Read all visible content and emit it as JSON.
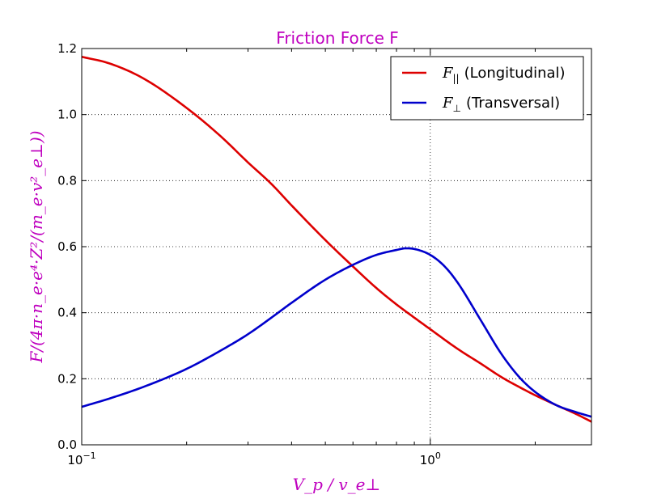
{
  "chart_data": {
    "type": "line",
    "title": "Friction Force F",
    "xlabel": "V_p / v_e⊥",
    "ylabel": "F/(4π·n_e·e⁴·Z²/(m_e·v²_e⊥))",
    "x_scale": "log",
    "xlim": [
      0.1,
      2.9
    ],
    "ylim": [
      0,
      1.2
    ],
    "x_ticks": [
      0.1,
      1.0
    ],
    "x_tick_labels": [
      {
        "base": "10",
        "exp": "−1"
      },
      {
        "base": "10",
        "exp": "0"
      }
    ],
    "y_ticks": [
      0.0,
      0.2,
      0.4,
      0.6,
      0.8,
      1.0,
      1.2
    ],
    "y_tick_labels": [
      "0.0",
      "0.2",
      "0.4",
      "0.6",
      "0.8",
      "1.0",
      "1.2"
    ],
    "grid": true,
    "legend_position": "top-right",
    "title_color": "#bf00bf",
    "label_color": "#bf00bf",
    "series": [
      {
        "name": "F|| (Longitudinal)",
        "legend_symbol": "F",
        "legend_subscript": "||",
        "legend_text": "(Longitudinal)",
        "color": "#dd0000",
        "x": [
          0.1,
          0.12,
          0.15,
          0.2,
          0.25,
          0.3,
          0.35,
          0.4,
          0.5,
          0.6,
          0.7,
          0.8,
          0.9,
          1.0,
          1.2,
          1.4,
          1.6,
          1.8,
          2.0,
          2.3,
          2.6,
          2.9
        ],
        "y": [
          1.175,
          1.155,
          1.11,
          1.02,
          0.935,
          0.855,
          0.79,
          0.725,
          0.62,
          0.54,
          0.475,
          0.425,
          0.385,
          0.35,
          0.29,
          0.245,
          0.205,
          0.175,
          0.15,
          0.12,
          0.095,
          0.07
        ]
      },
      {
        "name": "F⊥ (Transversal)",
        "legend_symbol": "F",
        "legend_subscript": "⊥",
        "legend_text": "(Transversal)",
        "color": "#0000cc",
        "x": [
          0.1,
          0.12,
          0.15,
          0.2,
          0.25,
          0.3,
          0.35,
          0.4,
          0.5,
          0.6,
          0.7,
          0.8,
          0.85,
          0.9,
          1.0,
          1.1,
          1.2,
          1.4,
          1.6,
          1.8,
          2.0,
          2.3,
          2.6,
          2.9
        ],
        "y": [
          0.115,
          0.14,
          0.175,
          0.23,
          0.285,
          0.335,
          0.385,
          0.43,
          0.5,
          0.545,
          0.575,
          0.59,
          0.595,
          0.593,
          0.575,
          0.54,
          0.49,
          0.375,
          0.275,
          0.205,
          0.16,
          0.12,
          0.1,
          0.085
        ]
      }
    ]
  }
}
